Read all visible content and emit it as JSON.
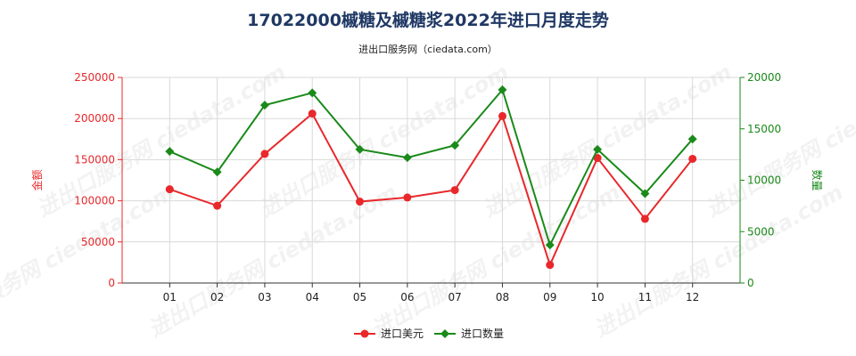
{
  "chart_data": {
    "type": "line",
    "title": "17022000槭糖及槭糖浆2022年进口月度走势",
    "subtitle": "进出口服务网（ciedata.com）",
    "watermark": "进出口服务网 ciedata.com",
    "categories": [
      "01",
      "02",
      "03",
      "04",
      "05",
      "06",
      "07",
      "08",
      "09",
      "10",
      "11",
      "12"
    ],
    "y_left": {
      "label": "金额",
      "range": [
        0,
        250000
      ],
      "ticks": [
        "0",
        "50000",
        "100000",
        "150000",
        "200000",
        "250000"
      ],
      "color": "#e8282b"
    },
    "y_right": {
      "label": "数量",
      "range": [
        0,
        20000
      ],
      "ticks": [
        "0",
        "5000",
        "10000",
        "15000",
        "20000"
      ],
      "color": "#1a8a1a"
    },
    "grid": true,
    "legend_position": "bottom",
    "series": [
      {
        "name": "进口美元",
        "axis": "left",
        "color": "#e8282b",
        "marker": "circle",
        "values": [
          114000,
          94000,
          157000,
          206000,
          99000,
          104000,
          113000,
          203000,
          22000,
          152000,
          78000,
          151000
        ]
      },
      {
        "name": "进口数量",
        "axis": "right",
        "color": "#1a8a1a",
        "marker": "diamond",
        "values": [
          12800,
          10800,
          17300,
          18500,
          13000,
          12200,
          13400,
          18800,
          3700,
          13000,
          8700,
          14000
        ]
      }
    ]
  }
}
